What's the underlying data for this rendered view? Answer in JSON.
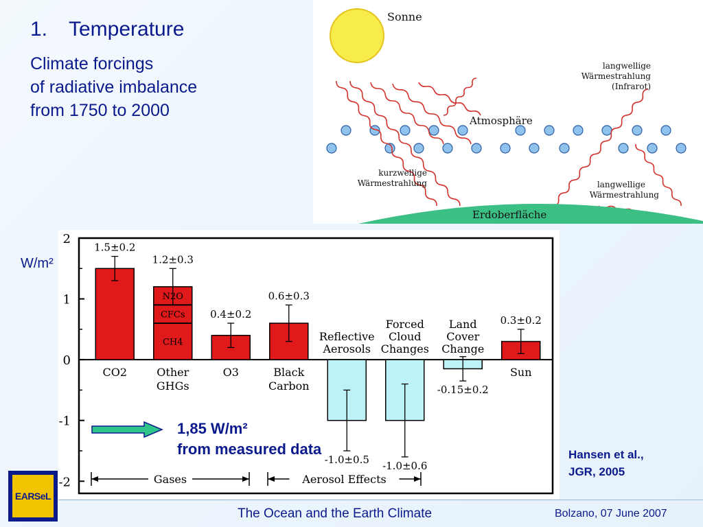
{
  "slide": {
    "heading_number": "1.",
    "heading": "Temperature",
    "subtitle_lines": [
      "Climate forcings",
      "of radiative imbalance",
      "from 1750 to 2000"
    ],
    "unit_label": "W/m²",
    "note_line1": "1,85 W/m²",
    "note_line2": "from measured data",
    "citation_line1": "Hansen et al.,",
    "citation_line2": "JGR, 2005",
    "footer_center": "The Ocean and the Earth Climate",
    "footer_right": "Bolzano, 07 June 2007",
    "logo_text": "EARSeL"
  },
  "diagram": {
    "sun": "Sonne",
    "atmosphere": "Atmosphäre",
    "longwave_top_1": "langwellige",
    "longwave_top_2": "Wärmestrahlung",
    "longwave_top_3": "(Infrarot)",
    "shortwave_1": "kurzwellige",
    "shortwave_2": "Wärmestrahlung",
    "longwave_bottom_1": "langwellige",
    "longwave_bottom_2": "Wärmestrahlung",
    "surface": "Erdoberfläche",
    "colors": {
      "sun": "#f8ec4a",
      "particle": "#8fc3ee",
      "wave": "#d2322c",
      "ground": "#3cbf85"
    }
  },
  "chart_data": {
    "type": "bar",
    "ylim": [
      -2.2,
      2
    ],
    "yticks": [
      2,
      1,
      0,
      -1,
      -2
    ],
    "ytick_labels": [
      "2",
      "1",
      "0",
      "-1",
      "-2"
    ],
    "categories": [
      {
        "label1": "CO2",
        "label2": "",
        "value": 1.5,
        "error": 0.2,
        "annotation": "1.5±0.2",
        "color": "#e01a1a"
      },
      {
        "label1": "Other",
        "label2": "GHGs",
        "value": 1.2,
        "error": 0.3,
        "annotation": "1.2±0.3",
        "color": "#e01a1a",
        "components": [
          {
            "name": "CH4",
            "value": 0.6
          },
          {
            "name": "CFCs",
            "value": 0.3
          },
          {
            "name": "N2O",
            "value": 0.3
          }
        ]
      },
      {
        "label1": "O3",
        "label2": "",
        "value": 0.4,
        "error": 0.2,
        "annotation": "0.4±0.2",
        "color": "#e01a1a"
      },
      {
        "label1": "Black",
        "label2": "Carbon",
        "value": 0.6,
        "error": 0.3,
        "annotation": "0.6±0.3",
        "color": "#e01a1a"
      },
      {
        "label1": "Reflective",
        "label2": "Aerosols",
        "value": -1.0,
        "error": 0.5,
        "annotation": "-1.0±0.5",
        "color": "#bdf3f8"
      },
      {
        "label1": "Forced",
        "label2": "Cloud",
        "label3": "Changes",
        "value": -1.0,
        "error": 0.6,
        "annotation": "-1.0±0.6",
        "color": "#bdf3f8"
      },
      {
        "label1": "Land",
        "label2": "Cover",
        "label3": "Change",
        "value": -0.15,
        "error": 0.2,
        "annotation": "-0.15±0.2",
        "color": "#bdf3f8"
      },
      {
        "label1": "Sun",
        "label2": "",
        "value": 0.3,
        "error": 0.2,
        "annotation": "0.3±0.2",
        "color": "#e01a1a"
      }
    ],
    "groups": [
      {
        "label": "Gases"
      },
      {
        "label": "Aerosol Effects"
      }
    ],
    "grid": false
  }
}
